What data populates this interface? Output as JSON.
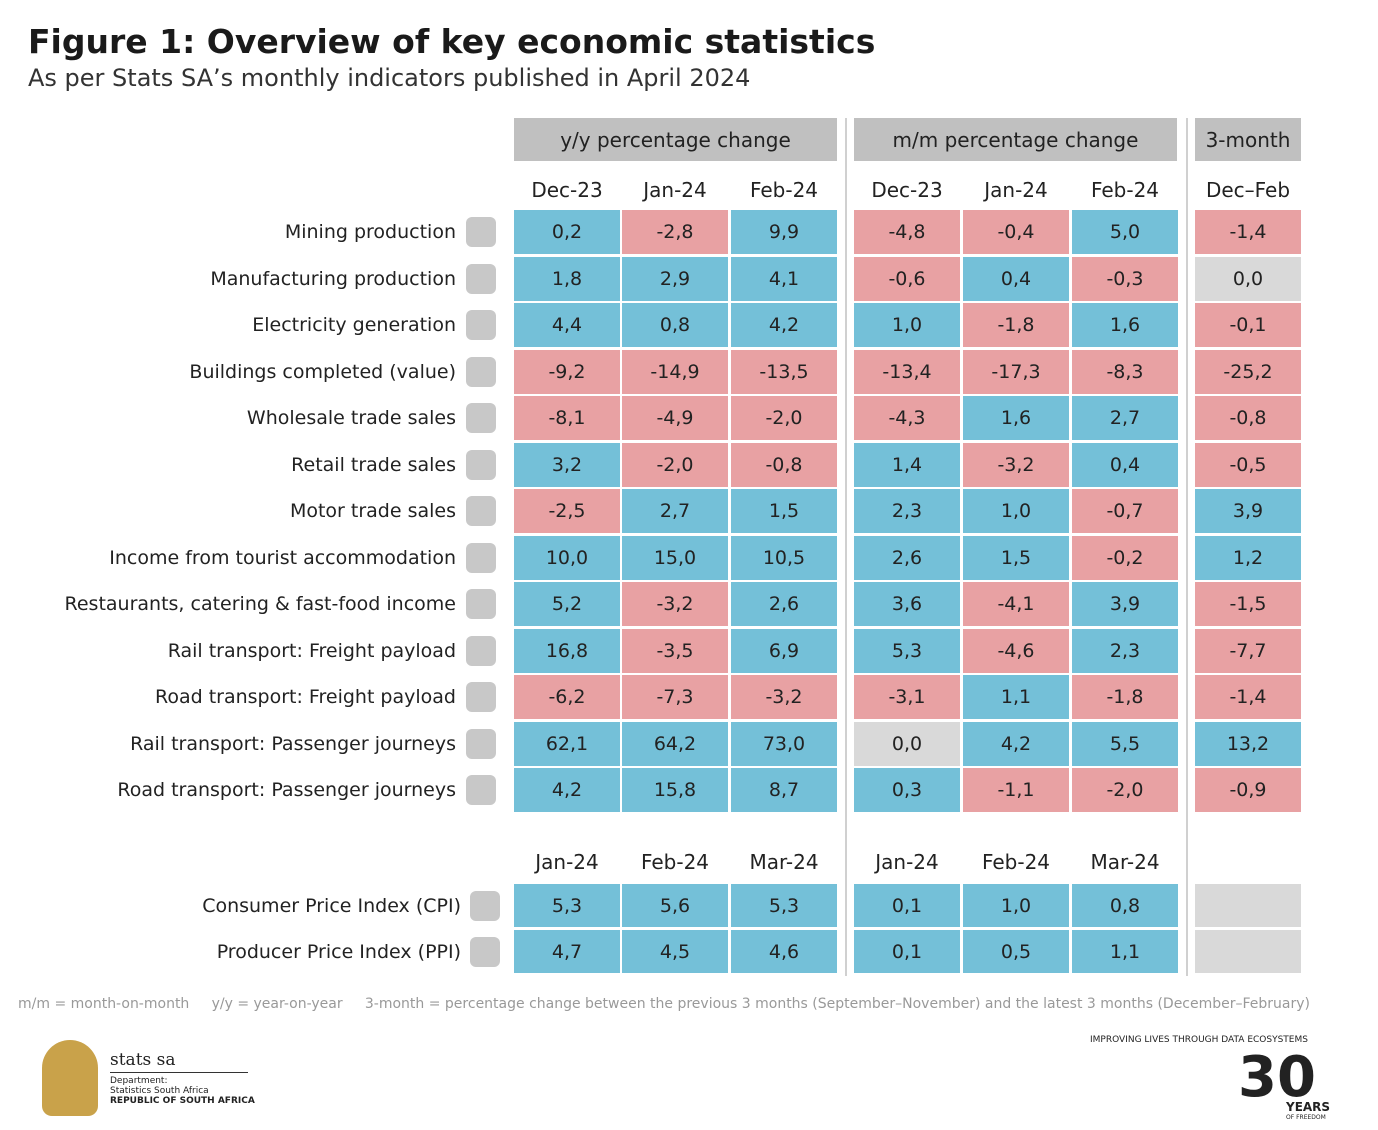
{
  "header": {
    "title": "Figure 1: Overview of key economic statistics",
    "subtitle": "As per Stats SA’s monthly indicators published in April 2024"
  },
  "table": {
    "groups": [
      "y/y percentage change",
      "m/m percentage change",
      "3-month"
    ],
    "columns": [
      "Dec-23",
      "Jan-24",
      "Feb-24",
      "Dec-23",
      "Jan-24",
      "Feb-24",
      "Dec–Feb"
    ],
    "rows": [
      {
        "label": "Mining production",
        "values": [
          "0,2",
          "-2,8",
          "9,9",
          "-4,8",
          "-0,4",
          "5,0",
          "-1,4"
        ]
      },
      {
        "label": "Manufacturing production",
        "values": [
          "1,8",
          "2,9",
          "4,1",
          "-0,6",
          "0,4",
          "-0,3",
          "0,0"
        ]
      },
      {
        "label": "Electricity generation",
        "values": [
          "4,4",
          "0,8",
          "4,2",
          "1,0",
          "-1,8",
          "1,6",
          "-0,1"
        ]
      },
      {
        "label": "Buildings completed (value)",
        "values": [
          "-9,2",
          "-14,9",
          "-13,5",
          "-13,4",
          "-17,3",
          "-8,3",
          "-25,2"
        ]
      },
      {
        "label": "Wholesale trade sales",
        "values": [
          "-8,1",
          "-4,9",
          "-2,0",
          "-4,3",
          "1,6",
          "2,7",
          "-0,8"
        ]
      },
      {
        "label": "Retail trade sales",
        "values": [
          "3,2",
          "-2,0",
          "-0,8",
          "1,4",
          "-3,2",
          "0,4",
          "-0,5"
        ]
      },
      {
        "label": "Motor trade sales",
        "values": [
          "-2,5",
          "2,7",
          "1,5",
          "2,3",
          "1,0",
          "-0,7",
          "3,9"
        ]
      },
      {
        "label": "Income from tourist accommodation",
        "values": [
          "10,0",
          "15,0",
          "10,5",
          "2,6",
          "1,5",
          "-0,2",
          "1,2"
        ]
      },
      {
        "label": "Restaurants, catering & fast-food income",
        "values": [
          "5,2",
          "-3,2",
          "2,6",
          "3,6",
          "-4,1",
          "3,9",
          "-1,5"
        ]
      },
      {
        "label": "Rail transport: Freight payload",
        "values": [
          "16,8",
          "-3,5",
          "6,9",
          "5,3",
          "-4,6",
          "2,3",
          "-7,7"
        ]
      },
      {
        "label": "Road transport: Freight payload",
        "values": [
          "-6,2",
          "-7,3",
          "-3,2",
          "-3,1",
          "1,1",
          "-1,8",
          "-1,4"
        ]
      },
      {
        "label": "Rail transport: Passenger journeys",
        "values": [
          "62,1",
          "64,2",
          "73,0",
          "0,0",
          "4,2",
          "5,5",
          "13,2"
        ]
      },
      {
        "label": "Road transport: Passenger journeys",
        "values": [
          "4,2",
          "15,8",
          "8,7",
          "0,3",
          "-1,1",
          "-2,0",
          "-0,9"
        ]
      }
    ]
  },
  "prices": {
    "columns": [
      "Jan-24",
      "Feb-24",
      "Mar-24",
      "Jan-24",
      "Feb-24",
      "Mar-24"
    ],
    "rows": [
      {
        "label": "Consumer Price Index (CPI)",
        "values": [
          "5,3",
          "5,6",
          "5,3",
          "0,1",
          "1,0",
          "0,8"
        ]
      },
      {
        "label": "Producer Price Index (PPI)",
        "values": [
          "4,7",
          "4,5",
          "4,6",
          "0,1",
          "0,5",
          "1,1"
        ]
      }
    ]
  },
  "footnote": [
    "m/m = month-on-month",
    "y/y = year-on-year",
    "3-month = percentage change between the previous 3 months (September–November) and the latest 3 months (December–February)"
  ],
  "logos": {
    "brand": "stats sa",
    "dept": "Department:",
    "org": "Statistics South Africa",
    "country": "REPUBLIC OF SOUTH AFRICA",
    "slogan": "IMPROVING LIVES THROUGH DATA ECOSYSTEMS",
    "years": "30",
    "years_text": "YEARS",
    "freedom": "OF FREEDOM"
  }
}
